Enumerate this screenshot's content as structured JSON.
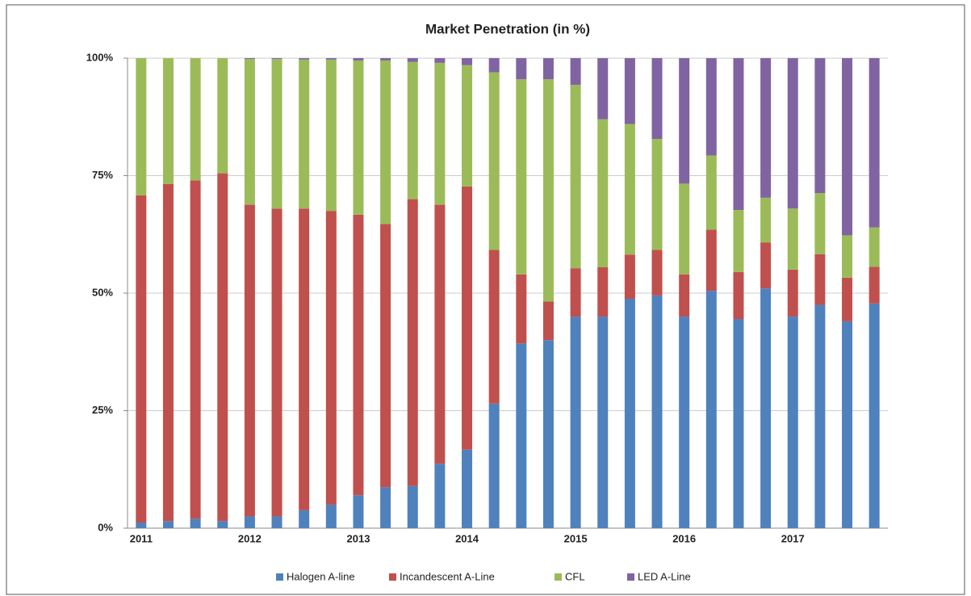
{
  "chart_data": {
    "type": "stacked_bar",
    "title": "Market Penetration (in %)",
    "categories": [
      "2011",
      null,
      null,
      null,
      "2012",
      null,
      null,
      null,
      "2013",
      null,
      null,
      null,
      "2014",
      null,
      null,
      null,
      "2015",
      null,
      null,
      null,
      "2016",
      null,
      null,
      null,
      "2017",
      null,
      null,
      null
    ],
    "series": [
      {
        "name": "Halogen A-line",
        "color": "#4f81bd",
        "values": [
          1.2,
          1.5,
          2,
          1.5,
          2.5,
          2.5,
          3.8,
          5,
          7,
          8.7,
          9,
          13.7,
          16.7,
          26.5,
          39.3,
          40,
          45,
          45,
          48.8,
          49.5,
          45,
          50.5,
          44.5,
          51,
          45,
          47.5,
          44,
          47.8
        ]
      },
      {
        "name": "Incandescent A-Line",
        "color": "#c0504d",
        "values": [
          69.6,
          71.7,
          72,
          74,
          66.3,
          65.5,
          64.2,
          62.5,
          59.7,
          56,
          61,
          55.1,
          56,
          32.7,
          14.7,
          8.2,
          10.3,
          10.5,
          9.4,
          9.7,
          9,
          13,
          10,
          9.8,
          10,
          10.8,
          9.3,
          7.8
        ]
      },
      {
        "name": "CFL",
        "color": "#9bbb59",
        "values": [
          29.2,
          26.8,
          26,
          24.5,
          31,
          31.8,
          31.7,
          32.2,
          32.8,
          34.8,
          29.2,
          30.2,
          25.8,
          37.8,
          41.5,
          47.3,
          39,
          31.5,
          27.8,
          23.6,
          19.3,
          15.8,
          13.2,
          9.5,
          13,
          13,
          9,
          8.4
        ]
      },
      {
        "name": "LED A-Line",
        "color": "#8064a2",
        "values": [
          0,
          0,
          0,
          0,
          0.2,
          0.2,
          0.3,
          0.3,
          0.5,
          0.5,
          0.8,
          1,
          1.5,
          3,
          4.5,
          4.5,
          5.7,
          13,
          14,
          17.2,
          26.7,
          20.7,
          32.3,
          29.7,
          32,
          28.7,
          37.7,
          36
        ]
      }
    ],
    "ylim": [
      0,
      100
    ],
    "yticks": [
      {
        "value": 0,
        "label": "0%"
      },
      {
        "value": 25,
        "label": "25%"
      },
      {
        "value": 50,
        "label": "50%"
      },
      {
        "value": 75,
        "label": "75%"
      },
      {
        "value": 100,
        "label": "100%"
      }
    ],
    "grid": true,
    "legend": "bottom"
  }
}
